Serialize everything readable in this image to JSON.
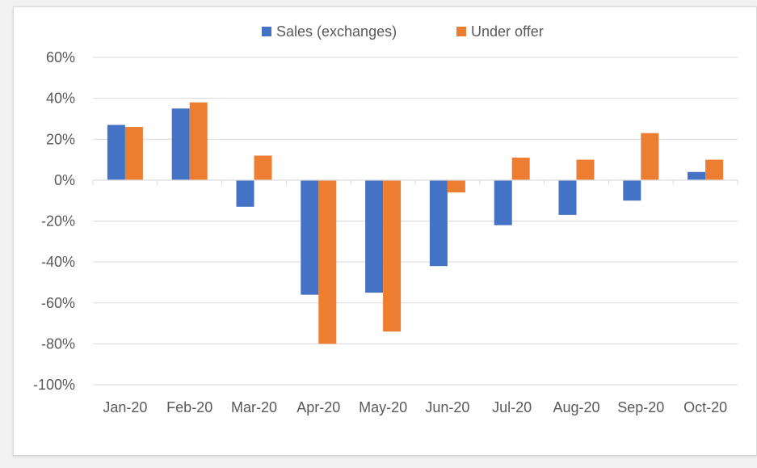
{
  "chart_data": {
    "type": "bar",
    "title": "",
    "xlabel": "",
    "ylabel": "",
    "categories": [
      "Jan-20",
      "Feb-20",
      "Mar-20",
      "Apr-20",
      "May-20",
      "Jun-20",
      "Jul-20",
      "Aug-20",
      "Sep-20",
      "Oct-20"
    ],
    "series": [
      {
        "name": "Sales (exchanges)",
        "color": "#4472c4",
        "values": [
          27,
          35,
          -13,
          -56,
          -55,
          -42,
          -22,
          -17,
          -10,
          4
        ]
      },
      {
        "name": "Under offer",
        "color": "#ed7d31",
        "values": [
          26,
          38,
          12,
          -80,
          -74,
          -6,
          11,
          10,
          23,
          10
        ]
      }
    ],
    "ylim": [
      -100,
      60
    ],
    "yticks": [
      60,
      40,
      20,
      0,
      -20,
      -40,
      -60,
      -80,
      -100
    ],
    "ytick_labels": [
      "60%",
      "40%",
      "20%",
      "0%",
      "-20%",
      "-40%",
      "-60%",
      "-80%",
      "-100%"
    ],
    "grid": true,
    "legend_position": "top-center",
    "gridline_color": "#d9d9d9",
    "axis_label_color": "#595959"
  }
}
